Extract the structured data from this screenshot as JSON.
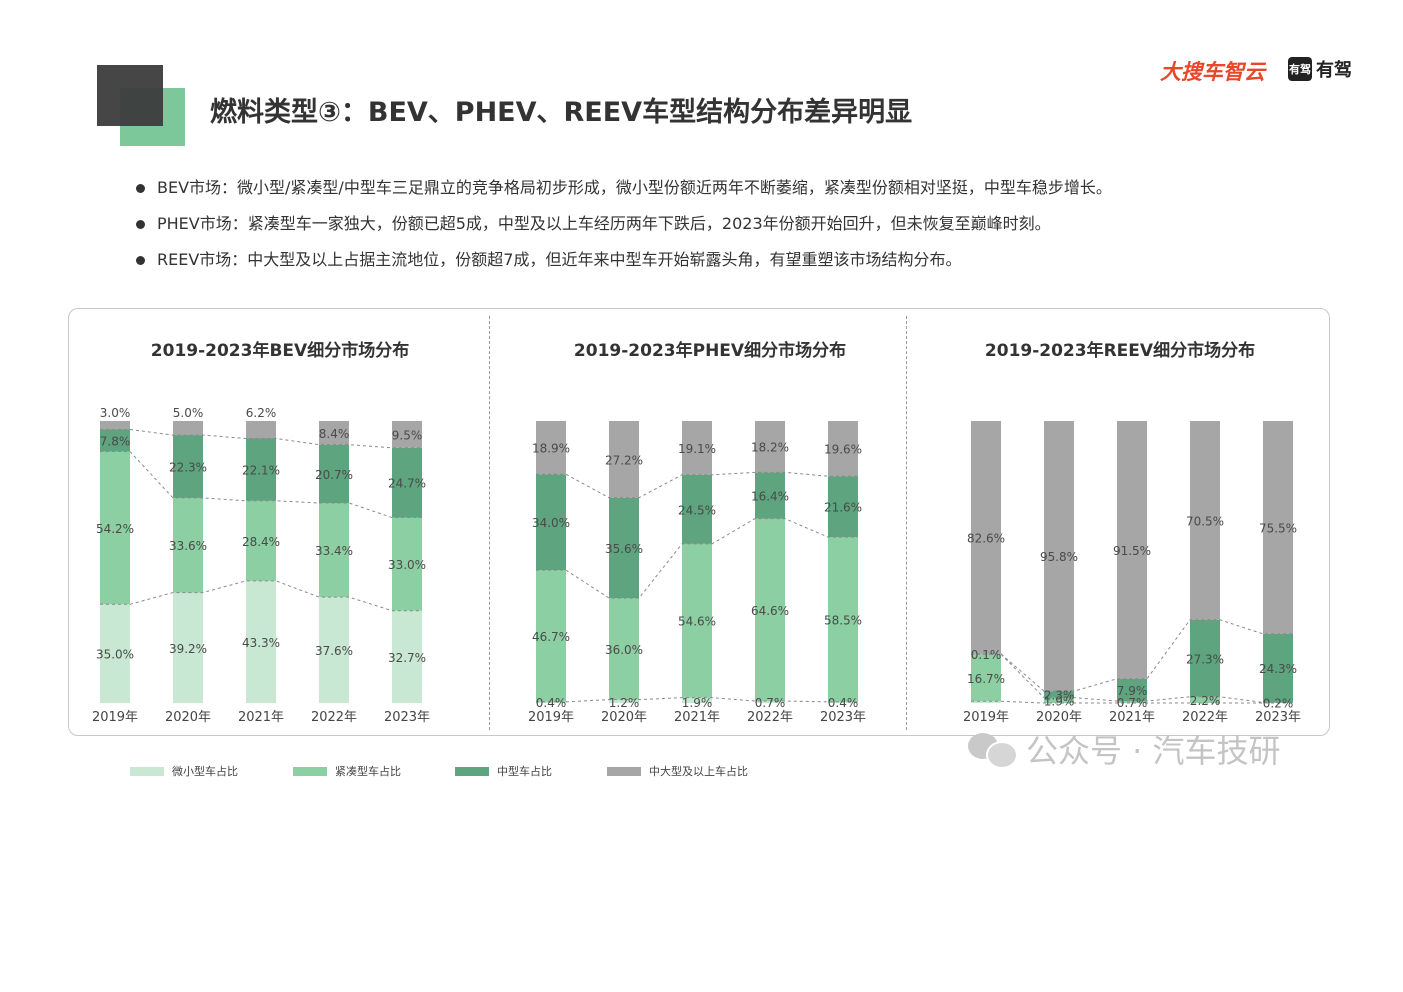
{
  "title": "燃料类型③：BEV、PHEV、REEV车型结构分布差异明显",
  "logos": {
    "sou": "大搜车智云",
    "youjia": "有驾",
    "youjia_badge": "有驾"
  },
  "bullets": [
    "BEV市场：微小型/紧凑型/中型车三足鼎立的竞争格局初步形成，微小型份额近两年不断萎缩，紧凑型份额相对坚挺，中型车稳步增长。",
    "PHEV市场：紧凑型车一家独大，份额已超5成，中型及以上车经历两年下跌后，2023年份额开始回升，但未恢复至巅峰时刻。",
    "REEV市场：中大型及以上占据主流地位，份额超7成，但近年来中型车开始崭露头角，有望重塑该市场结构分布。"
  ],
  "colors": {
    "micro": "#c8e8d3",
    "compact": "#8ccfa3",
    "mid": "#5da47f",
    "large": "#a6a6a6",
    "text": "#444444",
    "frame": "#c8c8c8"
  },
  "legend": [
    {
      "label": "微小型车占比",
      "color_key": "micro"
    },
    {
      "label": "紧凑型车占比",
      "color_key": "compact"
    },
    {
      "label": "中型车占比",
      "color_key": "mid"
    },
    {
      "label": "中大型及以上车占比",
      "color_key": "large"
    }
  ],
  "watermark": "公众号 · 汽车技研",
  "chart_data": [
    {
      "type": "bar",
      "stacked": true,
      "percent": true,
      "title": "2019-2023年BEV细分市场分布",
      "categories": [
        "2019年",
        "2020年",
        "2021年",
        "2022年",
        "2023年"
      ],
      "ylim": [
        0,
        100
      ],
      "series": [
        {
          "name": "微小型车占比",
          "color_key": "micro",
          "values": [
            35.0,
            39.2,
            43.3,
            37.6,
            32.7
          ],
          "labels": [
            "35.0%",
            "39.2%",
            "43.3%",
            "37.6%",
            "32.7%"
          ]
        },
        {
          "name": "紧凑型车占比",
          "color_key": "compact",
          "values": [
            54.2,
            33.6,
            28.4,
            33.4,
            33.0
          ],
          "labels": [
            "54.2%",
            "33.6%",
            "28.4%",
            "33.4%",
            "33.0%"
          ]
        },
        {
          "name": "中型车占比",
          "color_key": "mid",
          "values": [
            7.8,
            22.3,
            22.1,
            20.7,
            24.7
          ],
          "labels": [
            "7.8%",
            "22.3%",
            "22.1%",
            "20.7%",
            "24.7%"
          ]
        },
        {
          "name": "中大型及以上车占比",
          "color_key": "large",
          "values": [
            3.0,
            5.0,
            6.2,
            8.4,
            9.5
          ],
          "labels": [
            "3.0%",
            "5.0%",
            "6.2%",
            "8.4%",
            "9.5%"
          ]
        }
      ]
    },
    {
      "type": "bar",
      "stacked": true,
      "percent": true,
      "title": "2019-2023年PHEV细分市场分布",
      "categories": [
        "2019年",
        "2020年",
        "2021年",
        "2022年",
        "2023年"
      ],
      "ylim": [
        0,
        100
      ],
      "series": [
        {
          "name": "微小型车占比",
          "color_key": "micro",
          "values": [
            0.4,
            1.2,
            1.9,
            0.7,
            0.4
          ],
          "labels": [
            "0.4%",
            "1.2%",
            "1.9%",
            "0.7%",
            "0.4%"
          ]
        },
        {
          "name": "紧凑型车占比",
          "color_key": "compact",
          "values": [
            46.7,
            36.0,
            54.6,
            64.6,
            58.5
          ],
          "labels": [
            "46.7%",
            "36.0%",
            "54.6%",
            "64.6%",
            "58.5%"
          ]
        },
        {
          "name": "中型车占比",
          "color_key": "mid",
          "values": [
            34.0,
            35.6,
            24.5,
            16.4,
            21.6
          ],
          "labels": [
            "34.0%",
            "35.6%",
            "24.5%",
            "16.4%",
            "21.6%"
          ]
        },
        {
          "name": "中大型及以上车占比",
          "color_key": "large",
          "values": [
            18.9,
            27.2,
            19.1,
            18.2,
            19.6
          ],
          "labels": [
            "18.9%",
            "27.2%",
            "19.1%",
            "18.2%",
            "19.6%"
          ]
        }
      ]
    },
    {
      "type": "bar",
      "stacked": true,
      "percent": true,
      "title": "2019-2023年REEV细分市场分布",
      "categories": [
        "2019年",
        "2020年",
        "2021年",
        "2022年",
        "2023年"
      ],
      "ylim": [
        0,
        100
      ],
      "series": [
        {
          "name": "微小型车占比",
          "color_key": "micro",
          "values": [
            0.6,
            0,
            0,
            0,
            0
          ],
          "labels": [
            "",
            "",
            "",
            "",
            ""
          ]
        },
        {
          "name": "紧凑型车占比",
          "color_key": "compact",
          "values": [
            16.7,
            1.9,
            0.7,
            2.2,
            0.2
          ],
          "labels": [
            "16.7%",
            "1.9%",
            "0.7%",
            "2.2%",
            "0.2%"
          ]
        },
        {
          "name": "中型车占比",
          "color_key": "mid",
          "values": [
            0.1,
            2.3,
            7.9,
            27.3,
            24.3
          ],
          "labels": [
            "0.1%",
            "2.3%",
            "7.9%",
            "27.3%",
            "24.3%"
          ]
        },
        {
          "name": "中大型及以上车占比",
          "color_key": "large",
          "values": [
            82.6,
            95.8,
            91.5,
            70.5,
            75.5
          ],
          "labels": [
            "82.6%",
            "95.8%",
            "91.5%",
            "70.5%",
            "75.5%"
          ]
        }
      ]
    }
  ]
}
